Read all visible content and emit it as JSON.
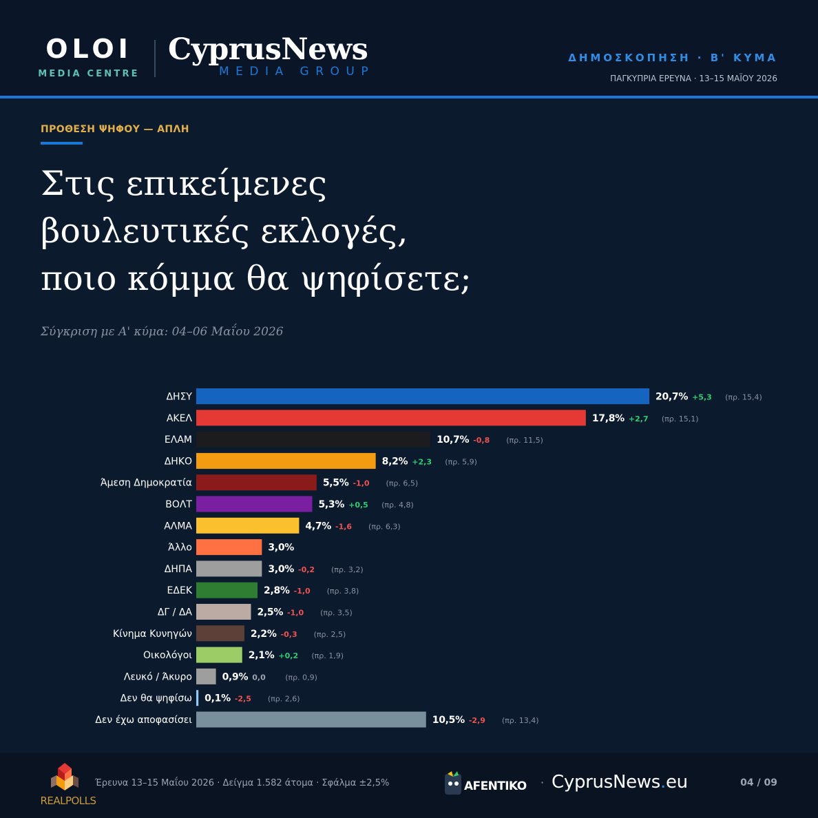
{
  "header": {
    "oloi_title": "OLOI",
    "oloi_sub": "MEDIA CENTRE",
    "cn_title": "CyprusNews",
    "cn_sub": "MEDIA GROUP",
    "poll_title": "ΔΗΜΟΣΚΟΠΗΣΗ · Β' ΚΥΜΑ",
    "poll_sub": "ΠΑΓΚΥΠΡΙΑ ΕΡΕΥΝΑ · 13–15 ΜΑΪΟΥ 2026"
  },
  "main": {
    "kicker": "ΠΡΟΘΕΣΗ ΨΗΦΟΥ — ΑΠΛΗ",
    "question_lines": [
      "Στις επικείμενες",
      "βουλευτικές εκλογές,",
      "ποιο κόμμα θα ψηφίσετε;"
    ],
    "compare": "Σύγκριση με Α' κύμα: 04–06 Μαΐου 2026"
  },
  "chart_data": {
    "type": "bar",
    "orientation": "horizontal",
    "categories": [
      "ΔΗΣΥ",
      "ΑΚΕΛ",
      "ΕΛΑΜ",
      "ΔΗΚΟ",
      "Άμεση Δημοκρατία",
      "ΒΟΛΤ",
      "ΑΛΜΑ",
      "Άλλο",
      "ΔΗΠΑ",
      "ΕΔΕΚ",
      "ΔΓ / ΔΑ",
      "Κίνημα Κυνηγών",
      "Οικολόγοι",
      "Λευκό / Άκυρο",
      "Δεν θα ψηφίσω",
      "Δεν έχω αποφασίσει"
    ],
    "values": [
      20.7,
      17.8,
      10.7,
      8.2,
      5.5,
      5.3,
      4.7,
      3.0,
      3.0,
      2.8,
      2.5,
      2.2,
      2.1,
      0.9,
      0.1,
      10.5
    ],
    "value_labels": [
      "20,7%",
      "17,8%",
      "10,7%",
      "8,2%",
      "5,5%",
      "5,3%",
      "4,7%",
      "3,0%",
      "3,0%",
      "2,8%",
      "2,5%",
      "2,2%",
      "2,1%",
      "0,9%",
      "0,1%",
      "10,5%"
    ],
    "change_labels": [
      "+5,3",
      "+2,7",
      "-0,8",
      "+2,3",
      "-1,0",
      "+0,5",
      "-1,6",
      "",
      "-0,2",
      "-1,0",
      "-1,0",
      "-0,3",
      "+0,2",
      "0,0",
      "-2,5",
      "-2,9"
    ],
    "previous_labels": [
      "(πρ. 15,4)",
      "(πρ. 15,1)",
      "(πρ. 11,5)",
      "(πρ. 5,9)",
      "(πρ. 6,5)",
      "(πρ. 4,8)",
      "(πρ. 6,3)",
      "",
      "(πρ. 3,2)",
      "(πρ. 3,8)",
      "(πρ. 3,5)",
      "(πρ. 2,5)",
      "(πρ. 1,9)",
      "(πρ. 0,9)",
      "(πρ. 2,6)",
      "(πρ. 13,4)"
    ],
    "colors": [
      "#1565c0",
      "#e53935",
      "#1c1c1e",
      "#f39c12",
      "#8b1a1a",
      "#7b1fa2",
      "#fbc02d",
      "#ff7043",
      "#9e9e9e",
      "#2e7d32",
      "#bcaaa4",
      "#5d4037",
      "#9ccc65",
      "#9e9e9e",
      "#90caf9",
      "#78909c"
    ],
    "change_colors": {
      "up": "#2ecc71",
      "down": "#ef5350",
      "flat": "#9aa4b2"
    },
    "xlim": [
      0,
      20.7
    ]
  },
  "footer": {
    "info": "Έρευνα 13–15 Μαΐου 2026  ·  Δείγμα 1.582 άτομα  ·  Σφάλμα ±2,5%",
    "rp_logo_text": "REALPOLLS",
    "afentiko_text": "AFENTIKO",
    "url_main": "CyprusNews",
    "url_dot": ".",
    "url_tld": "eu",
    "page": "04 / 09"
  }
}
